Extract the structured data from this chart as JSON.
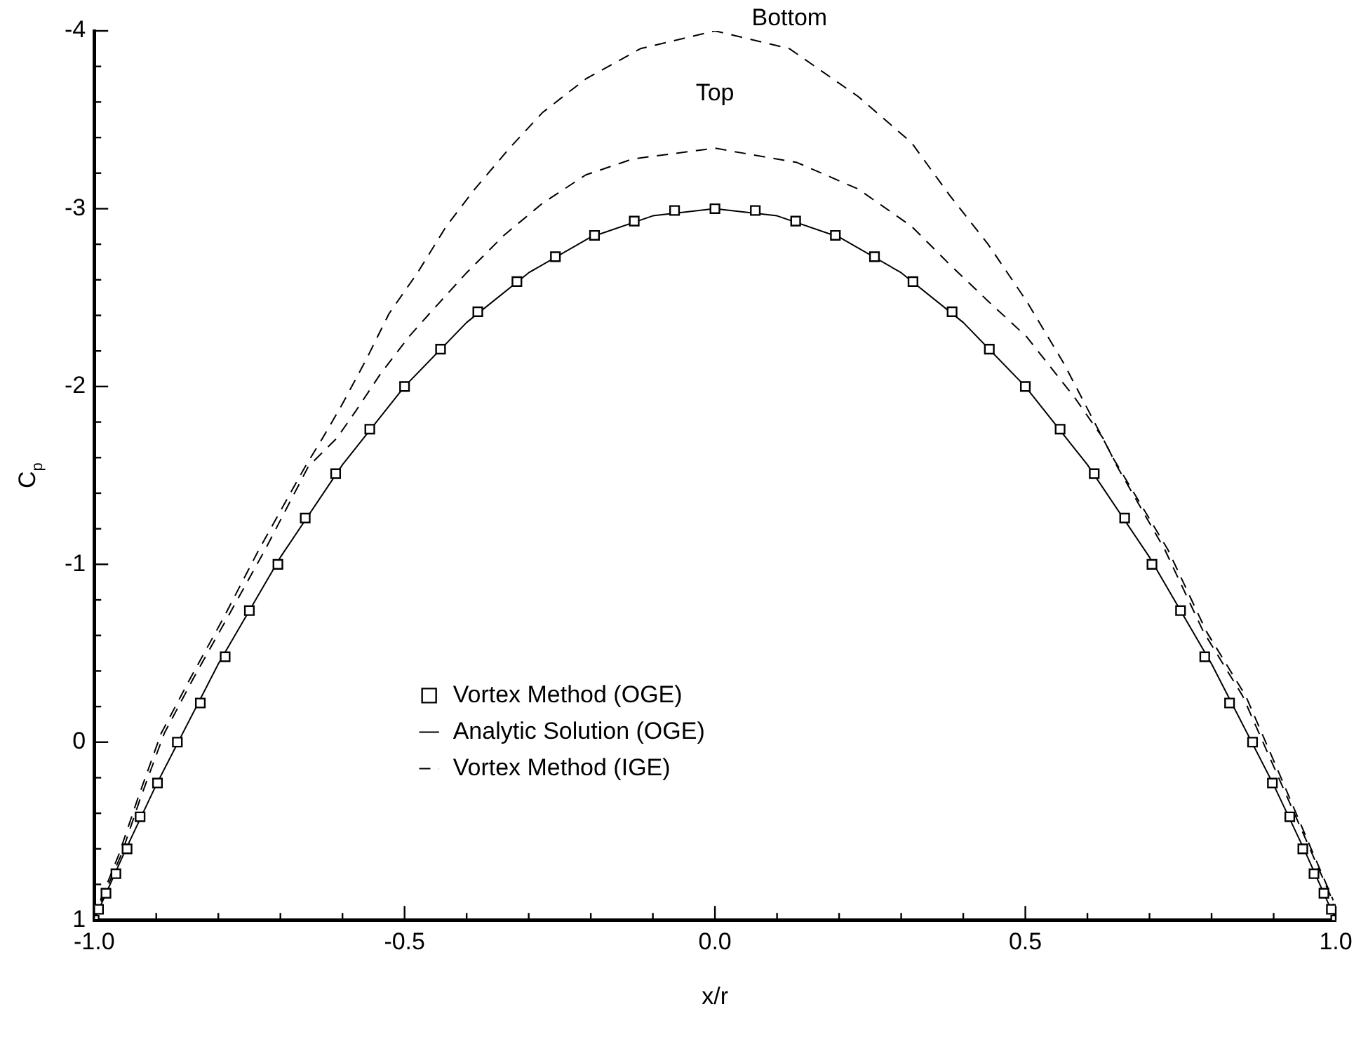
{
  "chart_data": {
    "type": "line",
    "xlabel": "x/r",
    "ylabel": "C$_{p}$",
    "xlim": [
      -1,
      1
    ],
    "ylim": [
      1,
      -4
    ],
    "xticks": [
      {
        "value": -1,
        "label": "-1.0"
      },
      {
        "value": -0.9,
        "label": null
      },
      {
        "value": -0.8,
        "label": null
      },
      {
        "value": -0.7,
        "label": null
      },
      {
        "value": -0.6,
        "label": null
      },
      {
        "value": -0.5,
        "label": "-0.5"
      },
      {
        "value": -0.4,
        "label": null
      },
      {
        "value": -0.3,
        "label": null
      },
      {
        "value": -0.2,
        "label": null
      },
      {
        "value": -0.1,
        "label": null
      },
      {
        "value": 0,
        "label": "0.0"
      },
      {
        "value": 0.1,
        "label": null
      },
      {
        "value": 0.2,
        "label": null
      },
      {
        "value": 0.3,
        "label": null
      },
      {
        "value": 0.4,
        "label": null
      },
      {
        "value": 0.5,
        "label": "0.5"
      },
      {
        "value": 0.6,
        "label": null
      },
      {
        "value": 0.7,
        "label": null
      },
      {
        "value": 0.8,
        "label": null
      },
      {
        "value": 0.9,
        "label": null
      },
      {
        "value": 1,
        "label": "1.0"
      }
    ],
    "yticks": [
      1,
      {
        "value": 0.8,
        "label": null
      },
      {
        "value": 0.6,
        "label": null
      },
      {
        "value": 0.4,
        "label": null
      },
      {
        "value": 0.2,
        "label": null
      },
      0,
      {
        "value": -0.2,
        "label": null
      },
      {
        "value": -0.4,
        "label": null
      },
      {
        "value": -0.6,
        "label": null
      },
      {
        "value": -0.8,
        "label": null
      },
      -1,
      {
        "value": -1.2,
        "label": null
      },
      {
        "value": -1.4,
        "label": null
      },
      {
        "value": -1.6,
        "label": null
      },
      {
        "value": -1.8,
        "label": null
      },
      -2,
      {
        "value": -2.2,
        "label": null
      },
      {
        "value": -2.4,
        "label": null
      },
      {
        "value": -2.6,
        "label": null
      },
      {
        "value": -2.8,
        "label": null
      },
      -3,
      {
        "value": -3.2,
        "label": null
      },
      {
        "value": -3.4,
        "label": null
      },
      {
        "value": -3.6,
        "label": null
      },
      {
        "value": -3.8,
        "label": null
      },
      -4
    ],
    "grid": false,
    "legend": "bottom",
    "annotations": [
      "Top",
      "Bottom"
    ],
    "series": [
      {
        "name": "Vortex Method (OGE)",
        "type": "scatter",
        "marker": "square",
        "color": "#000000",
        "x": [
          -1,
          -0.993,
          -0.981,
          -0.965,
          -0.947,
          -0.926,
          -0.898,
          -0.866,
          -0.829,
          -0.789,
          -0.75,
          -0.704,
          -0.66,
          -0.611,
          -0.556,
          -0.5,
          -0.442,
          -0.382,
          -0.319,
          -0.257,
          -0.194,
          -0.13,
          -0.065,
          0,
          0.065,
          0.13,
          0.194,
          0.257,
          0.319,
          0.382,
          0.442,
          0.5,
          0.556,
          0.611,
          0.66,
          0.704,
          0.75,
          0.789,
          0.829,
          0.866,
          0.898,
          0.926,
          0.947,
          0.965,
          0.981,
          0.993,
          1
        ],
        "values": [
          1,
          0.94,
          0.85,
          0.74,
          0.6,
          0.42,
          0.23,
          0,
          -0.22,
          -0.48,
          -0.74,
          -1,
          -1.26,
          -1.51,
          -1.76,
          -2,
          -2.21,
          -2.42,
          -2.59,
          -2.73,
          -2.85,
          -2.93,
          -2.99,
          -3,
          -2.99,
          -2.93,
          -2.85,
          -2.73,
          -2.59,
          -2.42,
          -2.21,
          -2,
          -1.76,
          -1.51,
          -1.26,
          -1,
          -0.74,
          -0.48,
          -0.22,
          0,
          0.23,
          0.42,
          0.6,
          0.74,
          0.85,
          0.94,
          1
        ]
      },
      {
        "name": "Analytic Solution (OGE)",
        "marker": "none",
        "line_style": "solid",
        "color": "#000000",
        "x": [
          -1,
          -0.95,
          -0.9,
          -0.8,
          -0.7,
          -0.6,
          -0.5,
          -0.4,
          -0.3,
          -0.2,
          -0.1,
          0,
          0.1,
          0.2,
          0.3,
          0.4,
          0.5,
          0.6,
          0.7,
          0.8,
          0.9,
          0.95,
          1
        ],
        "values": [
          1,
          0.61,
          0.24,
          -0.44,
          -1.04,
          -1.56,
          -2,
          -2.36,
          -2.64,
          -2.84,
          -2.96,
          -3,
          -2.96,
          -2.84,
          -2.64,
          -2.36,
          -2,
          -1.56,
          -1.04,
          -0.44,
          0.24,
          0.61,
          1
        ]
      },
      {
        "name": "Vortex Method (IGE)",
        "marker": "none",
        "line_style": "dashed",
        "color": "#000000",
        "x": [
          -1,
          -0.988,
          -0.956,
          -0.926,
          -0.887,
          -0.84,
          -0.787,
          -0.725,
          -0.655,
          -0.609,
          -0.579,
          -0.539,
          -0.493,
          -0.447,
          -0.4,
          -0.34,
          -0.278,
          -0.208,
          -0.132,
          0,
          0.132,
          0.231,
          0.317,
          0.377,
          0.44,
          0.502,
          0.579,
          0.625,
          0.648,
          0.725,
          0.787,
          0.85,
          0.903,
          0.956,
          0.995,
          1
        ],
        "values": [
          1,
          0.89,
          0.63,
          0.32,
          -0.05,
          -0.36,
          -0.69,
          -1.08,
          -1.55,
          -1.71,
          -1.86,
          -2.07,
          -2.28,
          -2.46,
          -2.64,
          -2.85,
          -3.03,
          -3.19,
          -3.28,
          -3.34,
          -3.26,
          -3.11,
          -2.9,
          -2.69,
          -2.48,
          -2.28,
          -1.94,
          -1.71,
          -1.55,
          -1.08,
          -0.62,
          -0.26,
          0.16,
          0.58,
          0.89,
          1
        ]
      },
      {
        "marker": "none",
        "line_style": "dashed",
        "color": "#000000",
        "x": [
          -0.99,
          -0.96,
          -0.93,
          -0.892,
          -0.845,
          -0.793,
          -0.735,
          -0.66,
          -0.632,
          -0.602,
          -0.562,
          -0.525,
          -0.479,
          -0.433,
          -0.387,
          -0.331,
          -0.278,
          -0.208,
          -0.12,
          0,
          0.12,
          0.231,
          0.317,
          0.377,
          0.44,
          0.502,
          0.562,
          0.641,
          0.73,
          0.792,
          0.855,
          0.907,
          0.958,
          0.996
        ],
        "values": [
          0.89,
          0.63,
          0.32,
          -0.05,
          -0.36,
          -0.69,
          -1.08,
          -1.55,
          -1.71,
          -1.89,
          -2.15,
          -2.41,
          -2.64,
          -2.9,
          -3.11,
          -3.34,
          -3.54,
          -3.73,
          -3.9,
          -4,
          -3.9,
          -3.63,
          -3.37,
          -3.08,
          -2.8,
          -2.48,
          -2.13,
          -1.6,
          -1.08,
          -0.62,
          -0.26,
          0.16,
          0.58,
          0.89
        ]
      }
    ]
  }
}
